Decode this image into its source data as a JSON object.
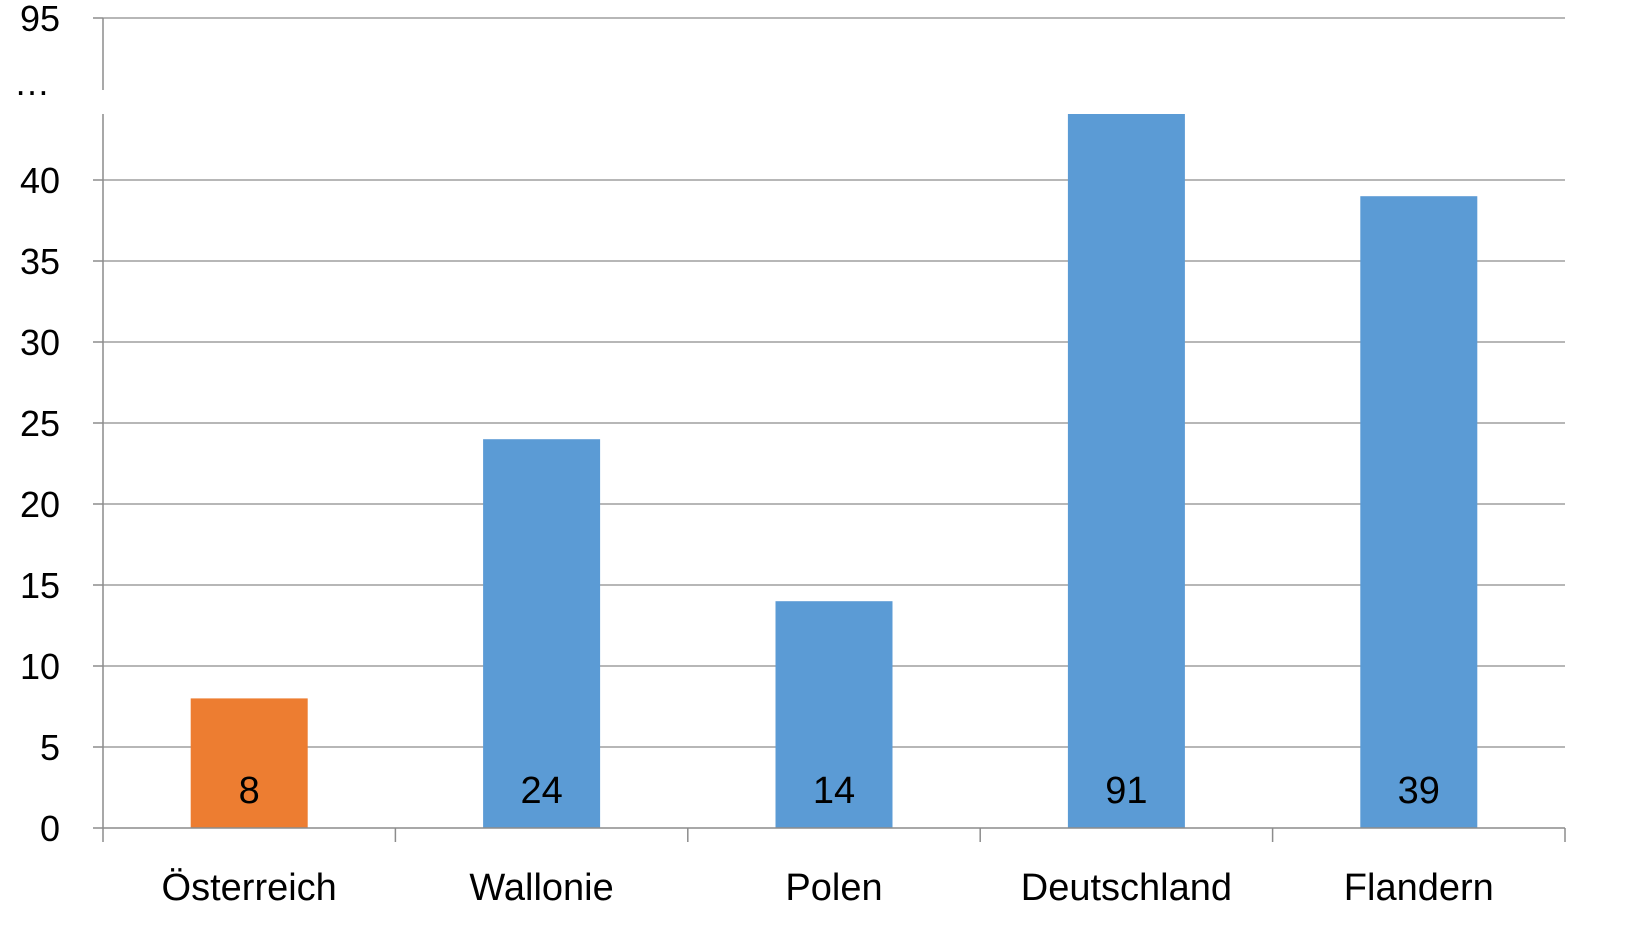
{
  "chart_data": {
    "type": "bar",
    "categories": [
      "Österreich",
      "Wallonie",
      "Polen",
      "Deutschland",
      "Flandern"
    ],
    "values": [
      8,
      24,
      14,
      91,
      39
    ],
    "data_labels": [
      "8",
      "24",
      "14",
      "91",
      "39"
    ],
    "bar_colors": [
      "#ED7D31",
      "#5B9BD5",
      "#5B9BD5",
      "#5B9BD5",
      "#5B9BD5"
    ],
    "title": "",
    "xlabel": "",
    "ylabel": "",
    "ylim": [
      0,
      95
    ],
    "axis_break": {
      "from": 45,
      "to": 91,
      "break_label": "…"
    },
    "yticks": [
      0,
      5,
      10,
      15,
      20,
      25,
      30,
      35,
      40
    ],
    "ytick_labels": [
      "0",
      "5",
      "10",
      "15",
      "20",
      "25",
      "30",
      "35",
      "40"
    ],
    "top_tick": 95,
    "top_tick_label": "95",
    "grid": true,
    "legend": "none"
  }
}
